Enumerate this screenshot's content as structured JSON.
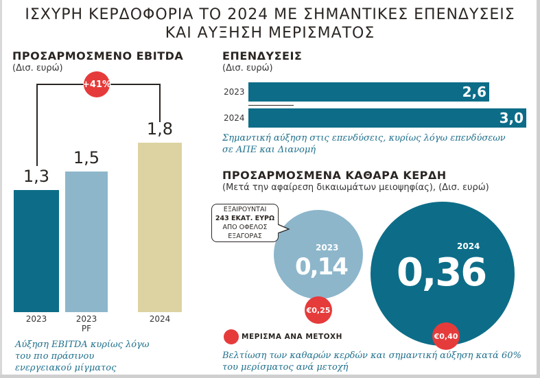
{
  "title": [
    "ΙΣΧΥΡΗ ΚΕΡΔΟΦΟΡΙΑ ΤΟ 2024 ΜΕ ΣΗΜΑΝΤΙΚΕΣ ΕΠΕΝΔΥΣΕΙΣ",
    "ΚΑΙ ΑΥΞΗΣΗ ΜΕΡΙΣΜΑΤΟΣ"
  ],
  "colors": {
    "teal": "#0d6d88",
    "lightblue": "#8db6cb",
    "beige": "#ddd3a2",
    "red": "#e63b3b"
  },
  "chart_data": [
    {
      "type": "bar",
      "title": "ΠΡΟΣΑΡΜΟΣΜΕΝΟ EBITDA",
      "unit": "(Δισ. ευρώ)",
      "categories": [
        "2023",
        "2023 PF",
        "2024"
      ],
      "category_lines": [
        [
          "2023"
        ],
        [
          "2023",
          "PF"
        ],
        [
          "2024"
        ]
      ],
      "values": [
        1.3,
        1.5,
        1.8
      ],
      "labels": [
        "1,3",
        "1,5",
        "1,8"
      ],
      "growth_badge": "+41%",
      "caption": [
        "Αύξηση EBITDA κυρίως λόγω",
        "του πιο πράσινου",
        "ενεργειακού μίγματος"
      ]
    },
    {
      "type": "bar",
      "orientation": "horizontal",
      "title": "ΕΠΕΝΔΥΣΕΙΣ",
      "unit": "(Δισ. ευρώ)",
      "categories": [
        "2023",
        "2024"
      ],
      "values": [
        2.6,
        3.0
      ],
      "labels": [
        "2,6",
        "3,0"
      ],
      "caption": [
        "Σημαντική αύξηση στις επενδύσεις, κυρίως λόγω επενδύσεων",
        "σε ΑΠΕ και Διανομή"
      ]
    },
    {
      "type": "bubble",
      "title": "ΠΡΟΣΑΡΜΟΣΜΕΝΑ ΚΑΘΑΡΑ ΚΕΡΔΗ",
      "unit": "(Μετά την αφαίρεση δικαιωμάτων μειοψηφίας), (Δισ. ευρώ)",
      "categories": [
        "2023",
        "2024"
      ],
      "values": [
        0.14,
        0.36
      ],
      "labels": [
        "0,14",
        "0,36"
      ],
      "dividends": [
        "€0,25",
        "€0,40"
      ],
      "legend": "ΜΕΡΙΣΜΑ ΑΝΑ ΜΕΤΟΧΗ",
      "callout": [
        "ΕΞΑΙΡΟΥΝΤΑΙ",
        "243 ΕΚΑΤ. ΕΥΡΩ",
        "ΑΠΟ ΟΦΕΛΟΣ",
        "ΕΞΑΓΟΡΑΣ"
      ],
      "caption": [
        "Βελτίωση των καθαρών κερδών και σημαντική αύξηση κατά 60%",
        "του μερίσματος ανά μετοχή"
      ]
    }
  ]
}
